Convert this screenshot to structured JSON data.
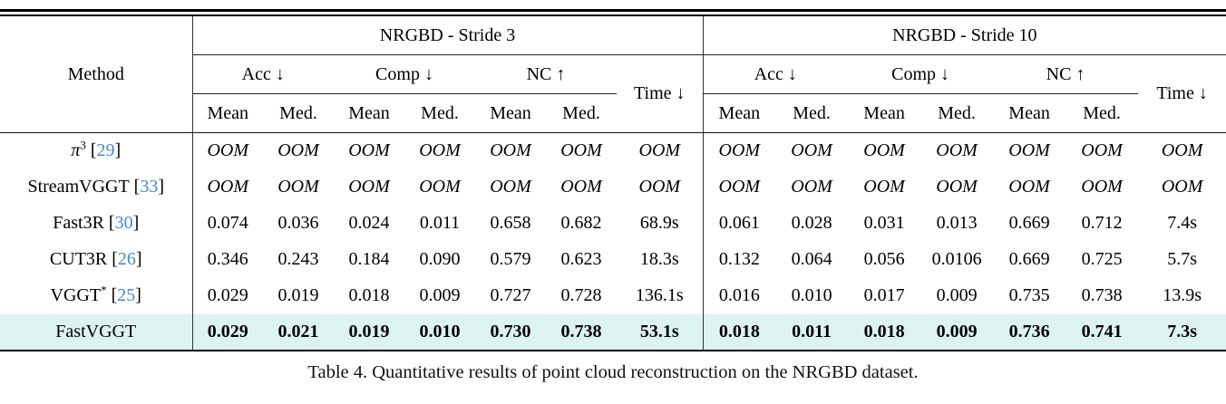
{
  "colors": {
    "citation_blue": "#4a86c8",
    "highlight_row": "#ddf3f0"
  },
  "table": {
    "method_label": "Method",
    "headers": {
      "acc": "Acc ↓",
      "comp": "Comp ↓",
      "nc": "NC ↑",
      "time": "Time ↓",
      "mean": "Mean",
      "med": "Med."
    },
    "groups": [
      {
        "title": "NRGBD - Stride 3"
      },
      {
        "title": "NRGBD - Stride 10"
      }
    ],
    "rows": [
      {
        "name": "π",
        "sup": "3",
        "cite": "29",
        "name_italic": true,
        "oom": true,
        "values": [
          "OOM",
          "OOM",
          "OOM",
          "OOM",
          "OOM",
          "OOM",
          "OOM",
          "OOM",
          "OOM",
          "OOM",
          "OOM",
          "OOM",
          "OOM",
          "OOM"
        ]
      },
      {
        "name": "StreamVGGT",
        "cite": "33",
        "oom": true,
        "values": [
          "OOM",
          "OOM",
          "OOM",
          "OOM",
          "OOM",
          "OOM",
          "OOM",
          "OOM",
          "OOM",
          "OOM",
          "OOM",
          "OOM",
          "OOM",
          "OOM"
        ]
      },
      {
        "name": "Fast3R",
        "cite": "30",
        "values": [
          "0.074",
          "0.036",
          "0.024",
          "0.011",
          "0.658",
          "0.682",
          "68.9s",
          "0.061",
          "0.028",
          "0.031",
          "0.013",
          "0.669",
          "0.712",
          "7.4s"
        ]
      },
      {
        "name": "CUT3R",
        "cite": "26",
        "values": [
          "0.346",
          "0.243",
          "0.184",
          "0.090",
          "0.579",
          "0.623",
          "18.3s",
          "0.132",
          "0.064",
          "0.056",
          "0.0106",
          "0.669",
          "0.725",
          "5.7s"
        ]
      },
      {
        "name": "VGGT",
        "sup": "*",
        "cite": "25",
        "values": [
          "0.029",
          "0.019",
          "0.018",
          "0.009",
          "0.727",
          "0.728",
          "136.1s",
          "0.016",
          "0.010",
          "0.017",
          "0.009",
          "0.735",
          "0.738",
          "13.9s"
        ]
      },
      {
        "name": "FastVGGT",
        "highlight": true,
        "bold": true,
        "values": [
          "0.029",
          "0.021",
          "0.019",
          "0.010",
          "0.730",
          "0.738",
          "53.1s",
          "0.018",
          "0.011",
          "0.018",
          "0.009",
          "0.736",
          "0.741",
          "7.3s"
        ]
      }
    ]
  },
  "caption": {
    "text": "Table 4. Quantitative results of point cloud reconstruction on the NRGBD dataset."
  }
}
